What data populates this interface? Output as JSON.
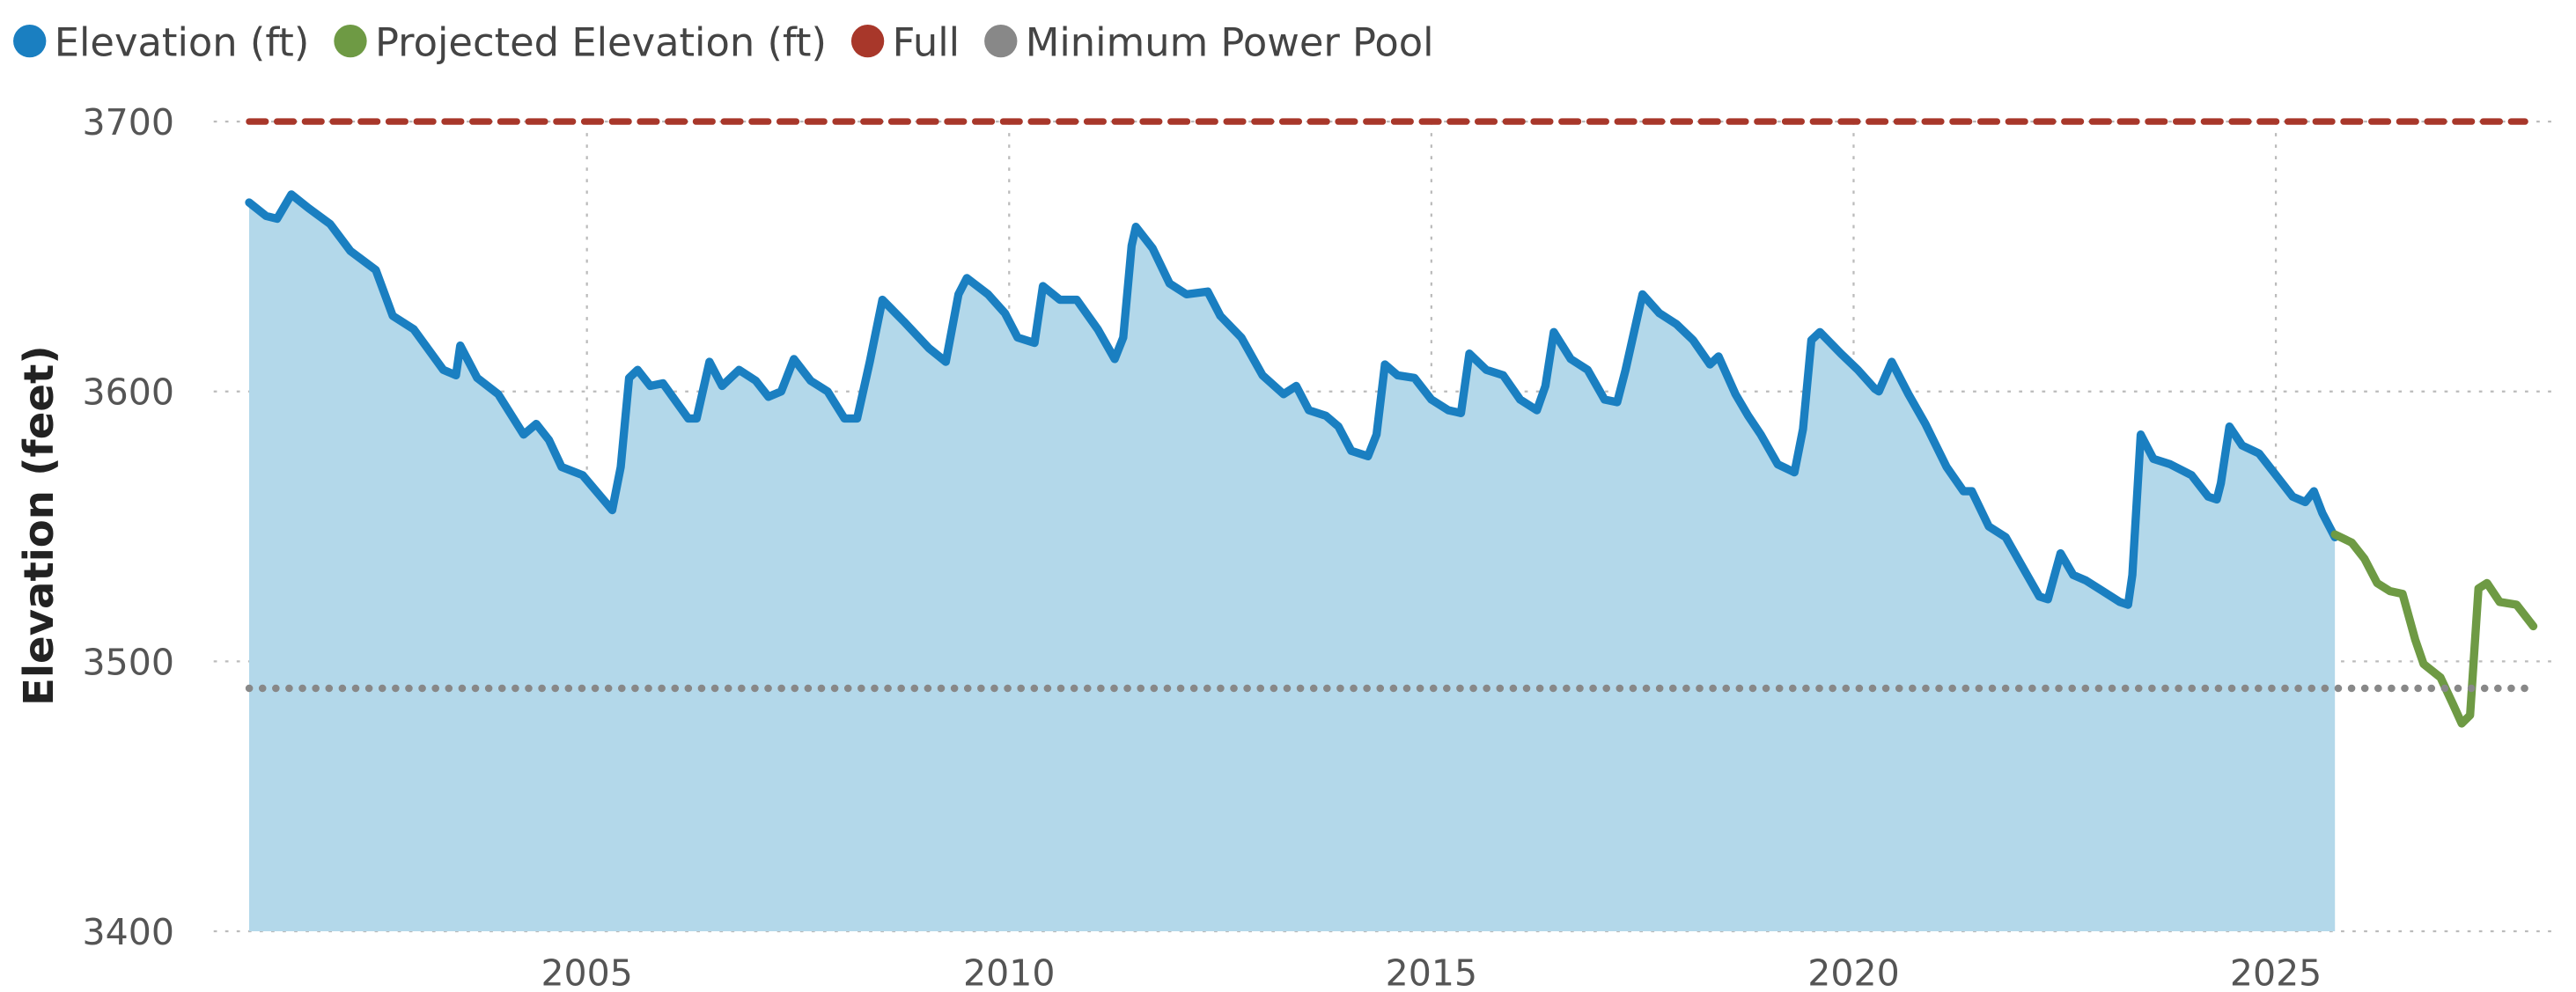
{
  "chart_data": {
    "type": "line",
    "y_label": "Elevation (feet)",
    "xlim": [
      2000.58,
      2028.3
    ],
    "ylim": [
      3400,
      3700
    ],
    "xticks": [
      2005,
      2010,
      2015,
      2020,
      2025
    ],
    "yticks": [
      3400,
      3500,
      3600,
      3700
    ],
    "grid": true,
    "legend_position": "top-left",
    "series": [
      {
        "name": "Elevation (ft)",
        "color": "#1a7fc1",
        "area_color": "#b3d8ea",
        "area": true,
        "x": [
          2001.0,
          2001.2,
          2001.33,
          2001.5,
          2001.7,
          2001.96,
          2002.2,
          2002.5,
          2002.7,
          2002.95,
          2003.3,
          2003.45,
          2003.5,
          2003.7,
          2003.95,
          2004.25,
          2004.4,
          2004.55,
          2004.7,
          2004.95,
          2005.3,
          2005.4,
          2005.5,
          2005.6,
          2005.75,
          2005.9,
          2006.2,
          2006.3,
          2006.45,
          2006.6,
          2006.8,
          2007.0,
          2007.15,
          2007.3,
          2007.45,
          2007.65,
          2007.85,
          2008.05,
          2008.2,
          2008.35,
          2008.5,
          2008.75,
          2009.05,
          2009.25,
          2009.4,
          2009.5,
          2009.75,
          2009.95,
          2010.1,
          2010.3,
          2010.4,
          2010.6,
          2010.8,
          2011.05,
          2011.25,
          2011.35,
          2011.45,
          2011.5,
          2011.7,
          2011.9,
          2012.1,
          2012.35,
          2012.5,
          2012.75,
          2013.0,
          2013.25,
          2013.4,
          2013.55,
          2013.75,
          2013.9,
          2014.05,
          2014.25,
          2014.35,
          2014.45,
          2014.6,
          2014.8,
          2015.0,
          2015.2,
          2015.35,
          2015.45,
          2015.65,
          2015.85,
          2016.05,
          2016.25,
          2016.35,
          2016.45,
          2016.65,
          2016.85,
          2017.05,
          2017.2,
          2017.3,
          2017.5,
          2017.7,
          2017.9,
          2018.1,
          2018.3,
          2018.4,
          2018.6,
          2018.75,
          2018.9,
          2019.1,
          2019.3,
          2019.4,
          2019.5,
          2019.6,
          2019.85,
          2020.05,
          2020.25,
          2020.3,
          2020.45,
          2020.65,
          2020.85,
          2021.1,
          2021.3,
          2021.4,
          2021.6,
          2021.8,
          2022.0,
          2022.2,
          2022.3,
          2022.45,
          2022.6,
          2022.75,
          2022.95,
          2023.15,
          2023.25,
          2023.3,
          2023.4,
          2023.55,
          2023.75,
          2024.0,
          2024.2,
          2024.3,
          2024.35,
          2024.45,
          2024.6,
          2024.8,
          2025.0,
          2025.2,
          2025.35,
          2025.45,
          2025.55,
          2025.7
        ],
        "values": [
          3670,
          3665,
          3664,
          3673,
          3668,
          3662,
          3652,
          3645,
          3628,
          3623,
          3608,
          3606,
          3617,
          3605,
          3599,
          3584,
          3588,
          3582,
          3572,
          3569,
          3556,
          3572,
          3605,
          3608,
          3602,
          3603,
          3590,
          3590,
          3611,
          3602,
          3608,
          3604,
          3598,
          3600,
          3612,
          3604,
          3600,
          3590,
          3590,
          3611,
          3634,
          3626,
          3616,
          3611,
          3636,
          3642,
          3636,
          3629,
          3620,
          3618,
          3639,
          3634,
          3634,
          3623,
          3612,
          3620,
          3654,
          3661,
          3653,
          3640,
          3636,
          3637,
          3628,
          3620,
          3606,
          3599,
          3602,
          3593,
          3591,
          3587,
          3578,
          3576,
          3584,
          3610,
          3606,
          3605,
          3597,
          3593,
          3592,
          3614,
          3608,
          3606,
          3597,
          3593,
          3602,
          3622,
          3612,
          3608,
          3597,
          3596,
          3608,
          3636,
          3629,
          3625,
          3619,
          3610,
          3613,
          3599,
          3591,
          3584,
          3573,
          3570,
          3586,
          3619,
          3622,
          3614,
          3608,
          3601,
          3600,
          3611,
          3599,
          3588,
          3572,
          3563,
          3563,
          3550,
          3546,
          3535,
          3524,
          3523,
          3540,
          3532,
          3530,
          3526,
          3522,
          3521,
          3532,
          3584,
          3575,
          3573,
          3569,
          3561,
          3560,
          3566,
          3587,
          3580,
          3577,
          3569,
          3561,
          3559,
          3563,
          3555,
          3546
        ]
      },
      {
        "name": "Projected Elevation (ft)",
        "color": "#6e9a44",
        "x": [
          2025.7,
          2025.9,
          2026.05,
          2026.2,
          2026.35,
          2026.5,
          2026.65,
          2026.75,
          2026.95,
          2027.1,
          2027.2,
          2027.3,
          2027.4,
          2027.5,
          2027.65,
          2027.85,
          2028.05
        ],
        "values": [
          3547,
          3544,
          3538,
          3529,
          3526,
          3525,
          3508,
          3499,
          3494,
          3484,
          3477,
          3480,
          3527,
          3529,
          3522,
          3521,
          3513
        ]
      },
      {
        "name": "Full",
        "color": "#a8372a",
        "line_style": "dashed",
        "x": [
          2001.0,
          2027.95
        ],
        "values": [
          3700,
          3700
        ]
      },
      {
        "name": "Minimum Power Pool",
        "color": "#888888",
        "line_style": "dotted",
        "x": [
          2001.0,
          2027.95
        ],
        "values": [
          3490,
          3490
        ]
      }
    ]
  }
}
